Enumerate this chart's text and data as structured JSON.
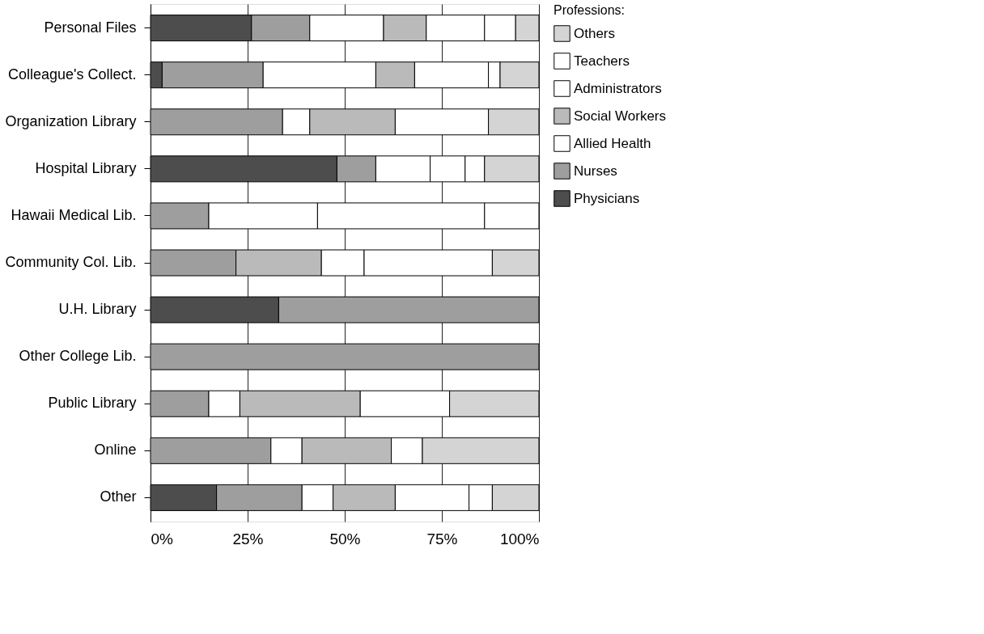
{
  "chart_data": {
    "type": "bar",
    "orientation": "horizontal",
    "stacked": true,
    "legend_title": "Professions:",
    "legend": "right",
    "grid": "x",
    "categories": [
      "Personal Files",
      "Colleague's Collect.",
      "Organization Library",
      "Hospital Library",
      "Hawaii Medical Lib.",
      "Community Col. Lib.",
      "U.H. Library",
      "Other College Lib.",
      "Public Library",
      "Online",
      "Other"
    ],
    "series": [
      {
        "name": "Physicians",
        "color": "#4d4d4d",
        "values": [
          26,
          3,
          0,
          48,
          0,
          0,
          33,
          0,
          0,
          0,
          17
        ]
      },
      {
        "name": "Nurses",
        "color": "#9e9e9e",
        "values": [
          15,
          26,
          34,
          10,
          15,
          22,
          67,
          100,
          15,
          31,
          22
        ]
      },
      {
        "name": "Allied Health",
        "color": "#ffffff",
        "values": [
          19,
          29,
          7,
          14,
          28,
          0,
          0,
          0,
          8,
          8,
          8
        ]
      },
      {
        "name": "Social Workers",
        "color": "#bababa",
        "values": [
          11,
          10,
          22,
          0,
          0,
          22,
          0,
          0,
          31,
          23,
          16
        ]
      },
      {
        "name": "Administrators",
        "color": "#ffffff",
        "values": [
          15,
          19,
          24,
          9,
          43,
          11,
          0,
          0,
          23,
          8,
          19
        ]
      },
      {
        "name": "Teachers",
        "color": "#ffffff",
        "values": [
          8,
          3,
          0,
          5,
          14,
          33,
          0,
          0,
          0,
          0,
          6
        ]
      },
      {
        "name": "Others",
        "color": "#d4d4d4",
        "values": [
          6,
          10,
          13,
          14,
          0,
          12,
          0,
          0,
          23,
          30,
          12
        ]
      }
    ],
    "xlim": [
      0,
      100
    ],
    "xticks": [
      {
        "value": 0,
        "label": "0%"
      },
      {
        "value": 25,
        "label": "25%"
      },
      {
        "value": 50,
        "label": "50%"
      },
      {
        "value": 75,
        "label": "75%"
      },
      {
        "value": 100,
        "label": "100%"
      }
    ]
  }
}
